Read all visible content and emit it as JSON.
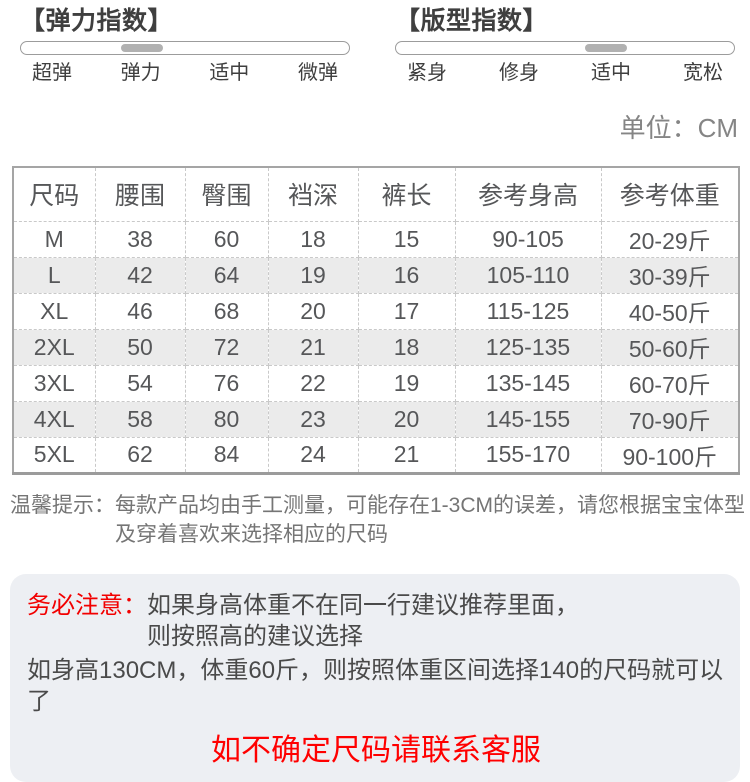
{
  "indices": {
    "elasticity": {
      "title": "【弹力指数】",
      "labels": [
        "超弹",
        "弹力",
        "适中",
        "微弹"
      ],
      "selected_label": "弹力",
      "thumb_pct": 37
    },
    "fit": {
      "title": "【版型指数】",
      "labels": [
        "紧身",
        "修身",
        "适中",
        "宽松"
      ],
      "selected_label": "适中",
      "thumb_pct": 62
    }
  },
  "unit_label": "单位：CM",
  "size_table": {
    "headers": [
      "尺码",
      "腰围",
      "臀围",
      "裆深",
      "裤长",
      "参考身高",
      "参考体重"
    ],
    "rows": [
      [
        "M",
        "38",
        "60",
        "18",
        "15",
        "90-105",
        "20-29斤"
      ],
      [
        "L",
        "42",
        "64",
        "19",
        "16",
        "105-110",
        "30-39斤"
      ],
      [
        "XL",
        "46",
        "68",
        "20",
        "17",
        "115-125",
        "40-50斤"
      ],
      [
        "2XL",
        "50",
        "72",
        "21",
        "18",
        "125-135",
        "50-60斤"
      ],
      [
        "3XL",
        "54",
        "76",
        "22",
        "19",
        "135-145",
        "60-70斤"
      ],
      [
        "4XL",
        "58",
        "80",
        "23",
        "20",
        "145-155",
        "70-90斤"
      ],
      [
        "5XL",
        "62",
        "84",
        "24",
        "21",
        "155-170",
        "90-100斤"
      ]
    ]
  },
  "tips": {
    "label": "温馨提示：",
    "line1": "每款产品均由手工测量，可能存在1-3CM的误差，请您根据宝宝体型",
    "line2": "及穿着喜欢来选择相应的尺码"
  },
  "notice_box": {
    "label": "务必注意：",
    "line1": "如果身高体重不在同一行建议推荐里面，",
    "line2": "则按照高的建议选择",
    "line3": "如身高130CM，体重60斤，则按照体重区间选择140的尺码就可以了",
    "contact": "如不确定尺码请联系客服"
  },
  "colors": {
    "notice_label_red": "#f20000",
    "contact_red": "#ff0000",
    "notice_box_bg": "#edeff3",
    "table_alt_row_bg": "#ebebeb",
    "slider_thumb_gray": "#b1b1b1"
  }
}
